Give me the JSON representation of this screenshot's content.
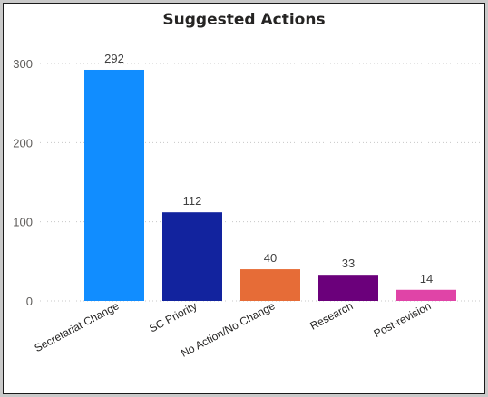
{
  "chart_data": {
    "type": "bar",
    "title": "Suggested Actions",
    "categories": [
      "Secretariat Change",
      "SC Priority",
      "No Action/No Change",
      "Research",
      "Post-revision"
    ],
    "values": [
      292,
      112,
      40,
      33,
      14
    ],
    "bar_colors": [
      "#118dff",
      "#12239e",
      "#e66c37",
      "#6b007b",
      "#e044a7"
    ],
    "yticks": [
      0,
      100,
      200,
      300
    ],
    "ylim": [
      0,
      330
    ],
    "xlabel": "",
    "ylabel": "",
    "grid": "horizontal-dotted",
    "legend": "none",
    "data_labels": true
  }
}
